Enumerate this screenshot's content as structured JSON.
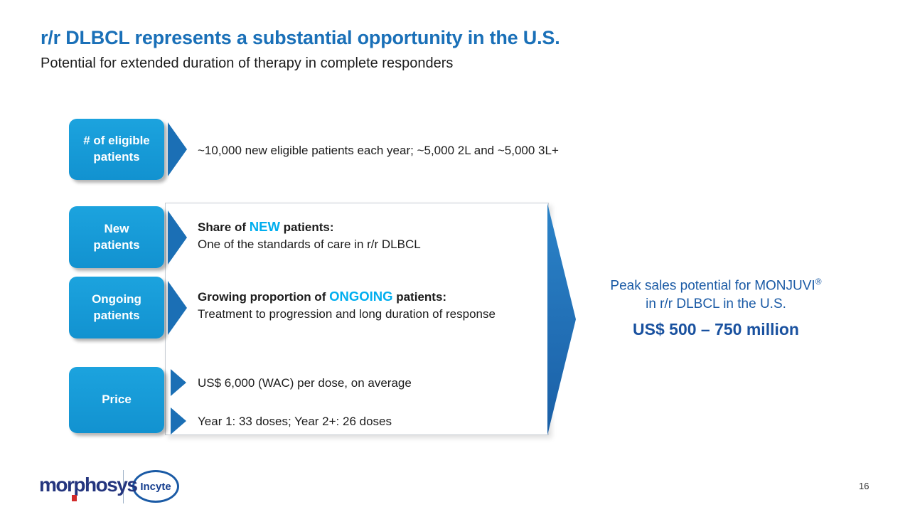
{
  "slide": {
    "title": "r/r DLBCL represents a substantial opportunity in the U.S.",
    "subtitle": "Potential for extended duration of therapy in complete responders"
  },
  "boxes": {
    "eligible": "# of eligible\npatients",
    "new": "New\npatients",
    "ongoing": "Ongoing\npatients",
    "price": "Price"
  },
  "rows": {
    "eligible_text": "~10,000 new eligible patients each year; ~5,000 2L and ~5,000 3L+",
    "new": {
      "lead": "Share of ",
      "highlight": "NEW",
      "tail": " patients:",
      "desc": "One of the standards of care in r/r DLBCL"
    },
    "ongoing": {
      "lead": "Growing proportion of ",
      "highlight": "ONGOING",
      "tail": " patients:",
      "desc": "Treatment to progression and long duration of response"
    },
    "price": {
      "line1": "US$ 6,000 (WAC) per dose, on average",
      "line2": "Year 1: 33 doses; Year 2+: 26 doses"
    }
  },
  "callout": {
    "line1": "Peak sales potential for MONJUVI",
    "registered": "®",
    "line2": "in r/r DLBCL in the U.S.",
    "value": "US$ 500 – 750 million"
  },
  "footer": {
    "morphosys_logo": "morphosys",
    "incyte_logo": "Incyte",
    "page_number": "16"
  },
  "colors": {
    "title_blue": "#1A70B8",
    "box_blue": "#189CD8",
    "arrow_blue": "#1B6FB5",
    "highlight_cyan": "#00AEEF",
    "callout_blue": "#19519F",
    "logo_navy": "#24357E"
  }
}
